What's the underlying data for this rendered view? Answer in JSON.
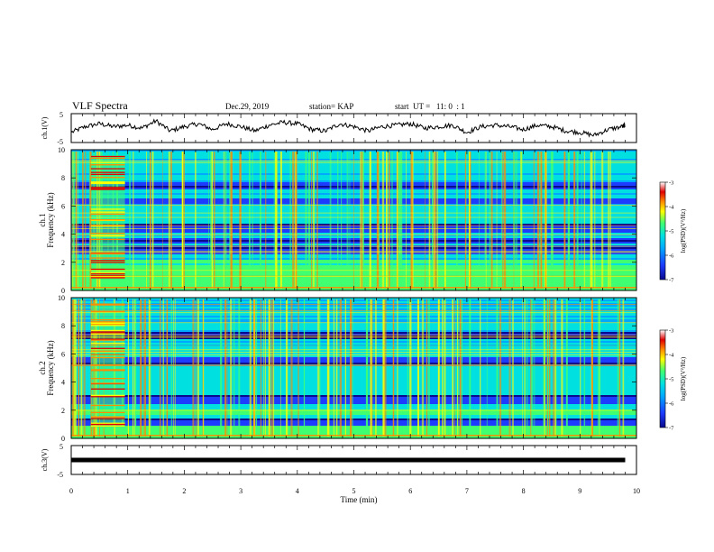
{
  "header": {
    "title": "VLF Spectra",
    "date": "Dec.29, 2019",
    "station": "station= KAP",
    "start": "start  UT =   11: 0  : 1"
  },
  "colors": {
    "line": "#000000",
    "colormap": [
      "#0a0a8c",
      "#1c3cff",
      "#00a8ff",
      "#00e0e0",
      "#40ff70",
      "#ffff00",
      "#ff8c00",
      "#e00000",
      "#ffffff"
    ]
  },
  "chart_data": [
    {
      "type": "line",
      "panel": "ch1-waveform",
      "ylabel": "ch.1(V)",
      "ylim": [
        -5,
        5
      ],
      "yticks": [
        "5",
        "-5"
      ],
      "xlim": [
        0,
        10
      ],
      "series": [
        {
          "x": [
            0,
            0.25,
            0.5,
            0.75,
            1.0,
            1.25,
            1.5,
            1.75,
            2.0,
            2.25,
            2.5,
            2.75,
            3.0,
            3.25,
            3.5,
            3.75,
            4.0,
            4.25,
            4.5,
            4.75,
            5.0,
            5.25,
            5.5,
            5.75,
            6.0,
            6.25,
            6.5,
            6.75,
            7.0,
            7.25,
            7.5,
            7.75,
            8.0,
            8.25,
            8.5,
            8.75,
            9.0,
            9.25,
            9.5,
            9.75,
            9.8
          ],
          "values": [
            -1.5,
            0.5,
            1.5,
            0.5,
            1.0,
            0.0,
            2.5,
            -1.0,
            0.5,
            1.5,
            -0.5,
            1.5,
            0.5,
            -1.0,
            1.0,
            2.0,
            1.5,
            -0.5,
            -1.0,
            1.5,
            0.5,
            -1.0,
            0.5,
            1.0,
            1.5,
            0.0,
            0.5,
            1.0,
            -1.5,
            0.5,
            1.0,
            0.5,
            -0.5,
            1.0,
            0.5,
            -1.0,
            -1.5,
            -2.5,
            -0.5,
            0.5,
            1.0
          ]
        }
      ]
    },
    {
      "type": "heatmap",
      "panel": "ch1-spectrogram",
      "ylabel_lines": [
        "ch.1",
        "Frequency (kHz)"
      ],
      "xlim": [
        0,
        10
      ],
      "ylim": [
        0,
        10
      ],
      "yticks": [
        "0",
        "2",
        "4",
        "6",
        "8",
        "10"
      ],
      "colorbar": {
        "label": "log(PSD)(V²/Hz)",
        "range": [
          -7,
          -3
        ],
        "ticks": [
          "-3",
          "-4",
          "-5",
          "-6",
          "-7"
        ]
      },
      "quiet_bands_khz": [
        [
          4.1,
          4.7
        ],
        [
          3.3,
          3.7
        ],
        [
          2.6,
          3.2
        ],
        [
          6.2,
          6.6
        ],
        [
          7.2,
          7.7
        ]
      ],
      "busy_interval_min": [
        0.35,
        0.95
      ]
    },
    {
      "type": "heatmap",
      "panel": "ch2-spectrogram",
      "ylabel_lines": [
        "ch.2",
        "Frequency (kHz)"
      ],
      "xlim": [
        0,
        10
      ],
      "ylim": [
        0,
        10
      ],
      "yticks": [
        "0",
        "2",
        "4",
        "6",
        "8",
        "10"
      ],
      "colorbar": {
        "label": "log(PSD)(V²/Hz)",
        "range": [
          -7,
          -3
        ],
        "ticks": [
          "-3",
          "-4",
          "-5",
          "-6",
          "-7"
        ]
      },
      "quiet_bands_khz": [
        [
          2.4,
          3.1
        ],
        [
          7.0,
          7.6
        ],
        [
          5.3,
          5.8
        ],
        [
          0.9,
          1.4
        ]
      ],
      "busy_interval_min": [
        0.35,
        0.95
      ]
    },
    {
      "type": "line",
      "panel": "ch3-waveform",
      "ylabel": "ch.3(V)",
      "ylim": [
        -5,
        5
      ],
      "yticks": [
        "5",
        "-5"
      ],
      "xlim": [
        0,
        10
      ],
      "xlabel": "Time  (min)",
      "xticks": [
        "0",
        "1",
        "2",
        "3",
        "4",
        "5",
        "6",
        "7",
        "8",
        "9",
        "10"
      ],
      "series": [
        {
          "x": [
            0,
            9.8
          ],
          "values": [
            0,
            0
          ]
        }
      ]
    }
  ]
}
